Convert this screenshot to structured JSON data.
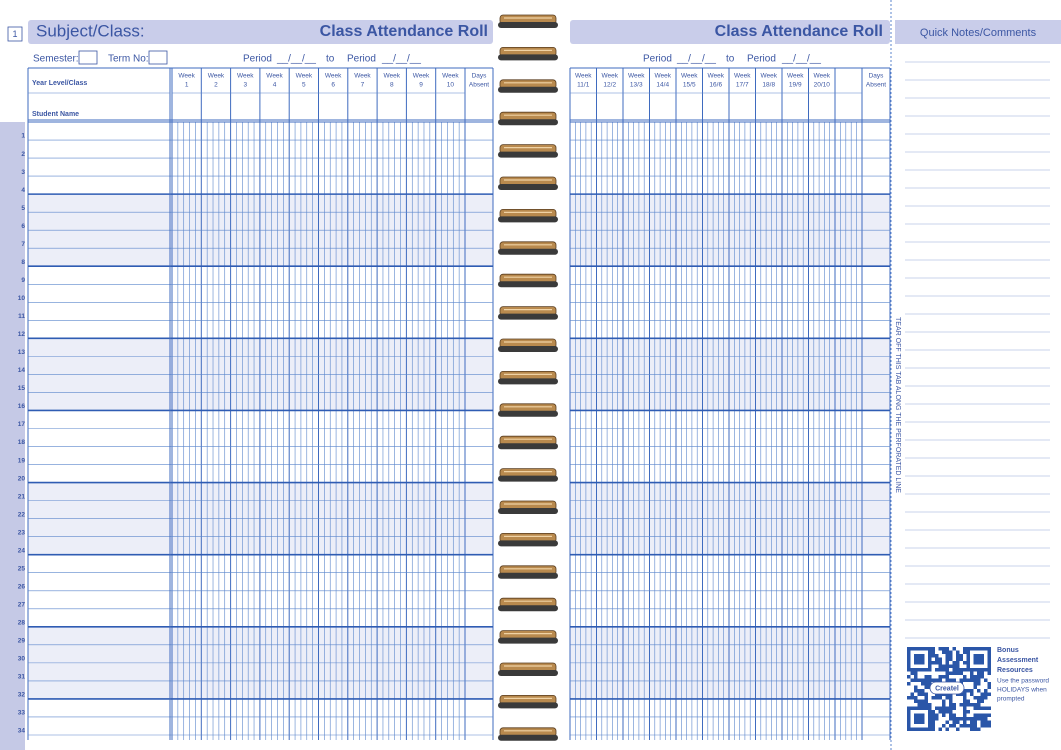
{
  "page_number": "1",
  "left_page": {
    "subject_label": "Subject/Class:",
    "title": "Class Attendance Roll",
    "semester_label": "Semester:",
    "term_label": "Term No:",
    "period_from_label": "Period",
    "period_from_blank": "__/__/__",
    "to_label": "to",
    "period_to_label": "Period",
    "period_to_blank": "__/__/__",
    "year_level_label": "Year Level/Class",
    "student_name_label": "Student Name",
    "week_word": "Week",
    "week_numbers": [
      "1",
      "2",
      "3",
      "4",
      "5",
      "6",
      "7",
      "8",
      "9",
      "10"
    ],
    "days_absent_line1": "Days",
    "days_absent_line2": "Absent",
    "row_numbers": [
      1,
      2,
      3,
      4,
      5,
      6,
      7,
      8,
      9,
      10,
      11,
      12,
      13,
      14,
      15,
      16,
      17,
      18,
      19,
      20,
      21,
      22,
      23,
      24,
      25,
      26,
      27,
      28,
      29,
      30,
      31,
      32,
      33,
      34
    ]
  },
  "right_page": {
    "title": "Class Attendance Roll",
    "period_from_label": "Period",
    "period_from_blank": "__/__/__",
    "to_label": "to",
    "period_to_label": "Period",
    "period_to_blank": "__/__/__",
    "week_word": "Week",
    "week_numbers": [
      "11/1",
      "12/2",
      "13/3",
      "14/4",
      "15/5",
      "16/6",
      "17/7",
      "18/8",
      "19/9",
      "20/10"
    ],
    "days_absent_line1": "Days",
    "days_absent_line2": "Absent"
  },
  "notes_tab": {
    "title": "Quick Notes/Comments",
    "tear_instruction": "TEAR OFF THIS TAB ALONG THE PERFORATED LINE",
    "bonus_title_line1": "Bonus",
    "bonus_title_line2": "Assessment",
    "bonus_title_line3": "Resources",
    "bonus_text_line1": "Use the password",
    "bonus_text_line2": "HOLIDAYS when",
    "bonus_text_line3": "prompted",
    "brand": "Createl"
  }
}
